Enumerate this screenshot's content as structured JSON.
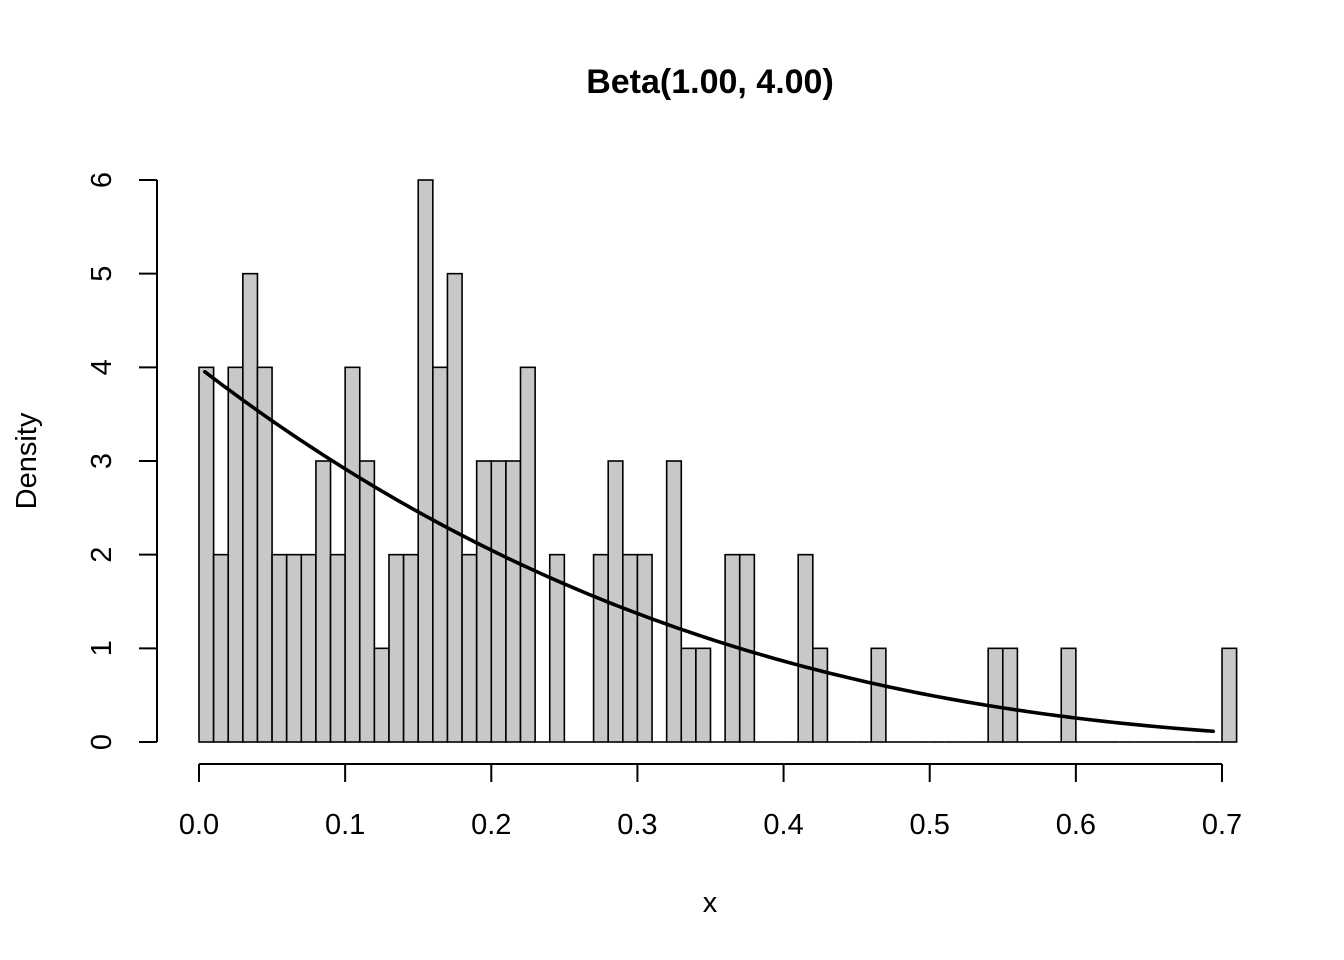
{
  "chart_data": {
    "type": "bar",
    "title": "Beta(1.00, 4.00)",
    "xlabel": "x",
    "ylabel": "Density",
    "xlim": [
      0.0,
      0.7
    ],
    "ylim": [
      0,
      6
    ],
    "x_ticks": [
      "0.0",
      "0.1",
      "0.2",
      "0.3",
      "0.4",
      "0.5",
      "0.6",
      "0.7"
    ],
    "y_ticks": [
      "0",
      "1",
      "2",
      "3",
      "4",
      "5",
      "6"
    ],
    "bin_width": 0.01,
    "bin_start": 0.0,
    "densities": [
      4,
      2,
      4,
      5,
      4,
      2,
      2,
      2,
      3,
      2,
      4,
      3,
      1,
      2,
      2,
      6,
      4,
      5,
      2,
      3,
      3,
      3,
      4,
      0,
      2,
      0,
      0,
      2,
      3,
      2,
      2,
      0,
      3,
      1,
      1,
      0,
      2,
      2,
      0,
      0,
      0,
      2,
      1,
      0,
      0,
      0,
      1,
      0,
      0,
      0,
      0,
      0,
      0,
      0,
      1,
      1,
      0,
      0,
      0,
      1,
      0,
      0,
      0,
      0,
      0,
      0,
      0,
      0,
      0,
      0,
      1
    ],
    "curve": {
      "name": "Beta(1, 4) density",
      "a": 1,
      "b": 4,
      "x_range": [
        0.004,
        0.694
      ]
    },
    "grid": false,
    "legend": "none"
  }
}
